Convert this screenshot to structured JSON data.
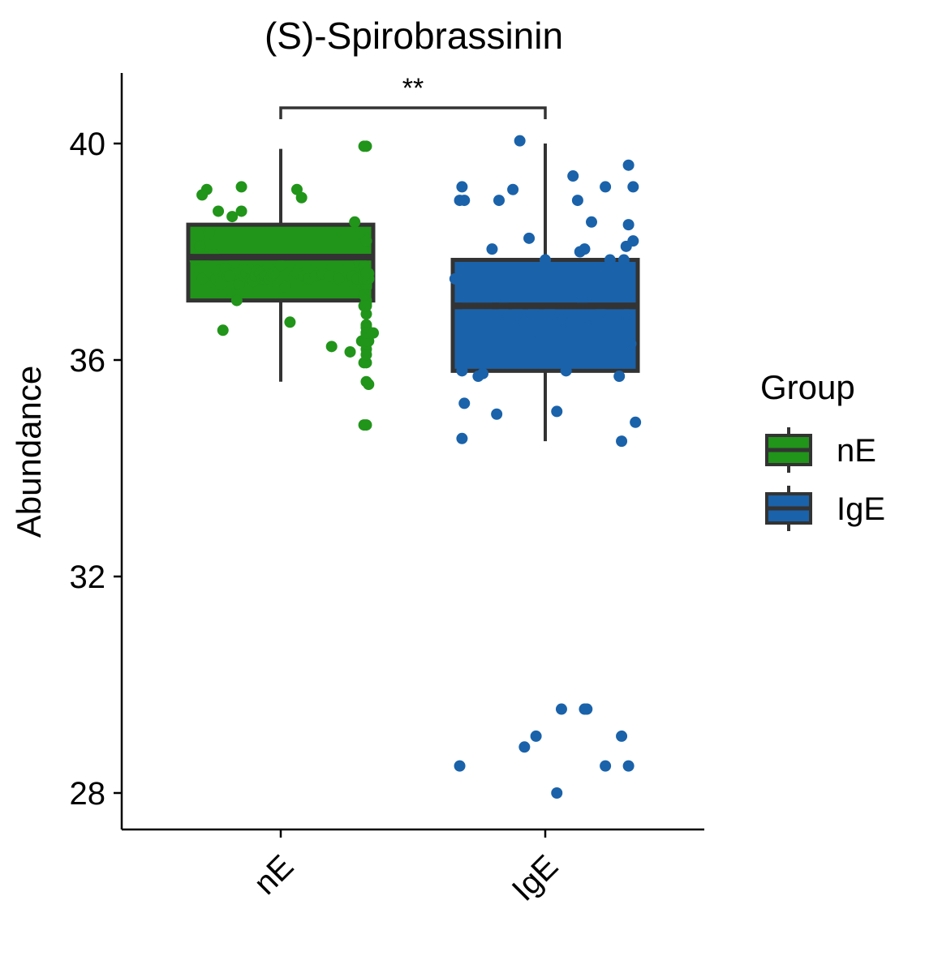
{
  "chart_data": {
    "type": "box",
    "title": "(S)-Spirobrassinin",
    "xlabel": "",
    "ylabel": "Abundance",
    "ylim": [
      27.3,
      41.3
    ],
    "yticks": [
      28,
      32,
      36,
      40
    ],
    "ytick_labels": [
      "28",
      "32",
      "36",
      "40"
    ],
    "categories": [
      "nE",
      "IgE"
    ],
    "legend": {
      "title": "Group",
      "position": "right",
      "entries": [
        "nE",
        "IgE"
      ]
    },
    "grid": false,
    "significance": {
      "label": "**",
      "between": [
        "nE",
        "IgE"
      ]
    },
    "colors": {
      "nE": "#21941a",
      "IgE": "#1a62aa",
      "box_outline": "#333333"
    },
    "groups": [
      {
        "name": "nE",
        "whisker_low": 35.6,
        "q1": 37.1,
        "median": 37.9,
        "q3": 38.5,
        "whisker_high": 39.9,
        "points": [
          [
            -0.37,
            37.85
          ],
          [
            -0.36,
            37.9
          ],
          [
            -0.35,
            38.1
          ],
          [
            -0.34,
            37.5
          ],
          [
            -0.33,
            37.9
          ],
          [
            -0.32,
            39.15
          ],
          [
            -0.31,
            38.35
          ],
          [
            -0.3,
            37.6
          ],
          [
            -0.29,
            37.95
          ],
          [
            -0.28,
            37.5
          ],
          [
            -0.27,
            37.65
          ],
          [
            -0.26,
            37.4
          ],
          [
            -0.25,
            36.55
          ],
          [
            -0.24,
            37.7
          ],
          [
            -0.23,
            37.55
          ],
          [
            -0.22,
            37.55
          ],
          [
            -0.21,
            38.65
          ],
          [
            -0.2,
            37.8
          ],
          [
            -0.19,
            37.1
          ],
          [
            -0.18,
            37.4
          ],
          [
            -0.17,
            39.2
          ],
          [
            -0.16,
            37.55
          ],
          [
            -0.15,
            37.6
          ],
          [
            -0.14,
            37.7
          ],
          [
            -0.13,
            37.5
          ],
          [
            -0.12,
            37.45
          ],
          [
            -0.11,
            37.55
          ],
          [
            -0.1,
            37.65
          ],
          [
            -0.09,
            37.6
          ],
          [
            -0.08,
            37.5
          ],
          [
            -0.07,
            37.55
          ],
          [
            -0.06,
            37.55
          ],
          [
            -0.05,
            37.5
          ],
          [
            -0.04,
            37.55
          ],
          [
            -0.03,
            37.6
          ],
          [
            0.0,
            37.75
          ],
          [
            0.02,
            37.35
          ],
          [
            0.04,
            36.7
          ],
          [
            0.07,
            37.6
          ],
          [
            0.1,
            37.55
          ],
          [
            0.12,
            37.5
          ],
          [
            0.15,
            37.55
          ],
          [
            0.18,
            37.6
          ],
          [
            0.21,
            37.55
          ],
          [
            0.22,
            36.25
          ],
          [
            0.25,
            37.5
          ],
          [
            0.3,
            36.15
          ],
          [
            0.31,
            37.55
          ],
          [
            0.32,
            38.55
          ],
          [
            0.33,
            37.5
          ],
          [
            0.34,
            37.8
          ],
          [
            0.35,
            36.35
          ],
          [
            0.36,
            37.75
          ],
          [
            0.37,
            36.65
          ],
          [
            0.38,
            37.5
          ],
          [
            -0.34,
            39.05
          ],
          [
            -0.27,
            38.75
          ],
          [
            -0.17,
            38.75
          ],
          [
            0.07,
            39.15
          ],
          [
            0.09,
            39.0
          ],
          [
            0.37,
            38.2
          ],
          [
            0.38,
            36.35
          ],
          [
            0.38,
            37.6
          ],
          [
            0.37,
            37.55
          ],
          [
            0.36,
            37.6
          ],
          [
            0.36,
            37.6
          ],
          [
            0.36,
            37.6
          ],
          [
            0.37,
            37.4
          ],
          [
            0.37,
            36.4
          ],
          [
            0.36,
            37.5
          ],
          [
            0.37,
            37.35
          ],
          [
            0.37,
            36.45
          ],
          [
            0.37,
            36.4
          ],
          [
            0.37,
            36.4
          ],
          [
            0.36,
            37.0
          ],
          [
            0.37,
            37.55
          ],
          [
            0.36,
            37.6
          ],
          [
            0.37,
            35.95
          ],
          [
            0.37,
            36.2
          ],
          [
            0.37,
            37.1
          ],
          [
            0.36,
            37.45
          ],
          [
            0.38,
            35.55
          ],
          [
            0.37,
            36.3
          ],
          [
            0.37,
            37.6
          ],
          [
            0.37,
            35.6
          ],
          [
            0.36,
            35.95
          ],
          [
            0.37,
            36.6
          ],
          [
            0.37,
            37.05
          ],
          [
            0.37,
            36.85
          ],
          [
            0.37,
            36.1
          ],
          [
            0.37,
            37.35
          ],
          [
            0.37,
            36.35
          ],
          [
            0.37,
            37.5
          ],
          [
            0.38,
            37.5
          ],
          [
            0.37,
            37.0
          ],
          [
            0.36,
            37.2
          ],
          [
            0.37,
            37.4
          ],
          [
            0.37,
            37.5
          ],
          [
            0.37,
            37.5
          ],
          [
            0.36,
            37.5
          ],
          [
            0.37,
            37.5
          ],
          [
            0.37,
            37.5
          ],
          [
            0.36,
            37.55
          ],
          [
            0.37,
            37.6
          ],
          [
            0.37,
            36.5
          ],
          [
            0.37,
            36.5
          ],
          [
            0.37,
            36.5
          ],
          [
            0.37,
            36.5
          ],
          [
            0.37,
            34.8
          ],
          [
            0.36,
            34.8
          ],
          [
            0.37,
            39.95
          ],
          [
            0.36,
            39.95
          ],
          [
            0.37,
            36.5
          ],
          [
            0.38,
            36.5
          ],
          [
            0.37,
            36.5
          ],
          [
            0.37,
            36.5
          ],
          [
            0.4,
            36.5
          ]
        ]
      },
      {
        "name": "IgE",
        "whisker_low": 34.5,
        "q1": 35.8,
        "median": 37.0,
        "q3": 37.85,
        "whisker_high": 40.0,
        "points": [
          [
            -0.39,
            37.5
          ],
          [
            -0.37,
            38.95
          ],
          [
            -0.36,
            35.8
          ],
          [
            -0.36,
            34.55
          ],
          [
            -0.36,
            39.2
          ],
          [
            -0.35,
            38.95
          ],
          [
            -0.35,
            35.2
          ],
          [
            -0.34,
            37.6
          ],
          [
            -0.34,
            37.0
          ],
          [
            -0.32,
            36.9
          ],
          [
            -0.3,
            37.1
          ],
          [
            -0.29,
            35.7
          ],
          [
            -0.28,
            37.0
          ],
          [
            -0.27,
            35.75
          ],
          [
            -0.25,
            37.0
          ],
          [
            -0.23,
            38.05
          ],
          [
            -0.21,
            35.0
          ],
          [
            -0.2,
            38.95
          ],
          [
            -0.18,
            37.0
          ],
          [
            -0.16,
            36.8
          ],
          [
            -0.14,
            39.15
          ],
          [
            -0.12,
            36.9
          ],
          [
            -0.11,
            40.05
          ],
          [
            -0.09,
            36.7
          ],
          [
            -0.07,
            38.25
          ],
          [
            -0.05,
            36.95
          ],
          [
            -0.03,
            36.5
          ],
          [
            0.0,
            37.85
          ],
          [
            0.02,
            36.9
          ],
          [
            0.05,
            35.05
          ],
          [
            0.07,
            36.75
          ],
          [
            0.09,
            35.8
          ],
          [
            0.11,
            36.7
          ],
          [
            0.12,
            39.4
          ],
          [
            0.14,
            38.95
          ],
          [
            0.15,
            38.0
          ],
          [
            0.16,
            37.1
          ],
          [
            0.17,
            38.05
          ],
          [
            0.18,
            36.6
          ],
          [
            0.2,
            38.55
          ],
          [
            0.21,
            36.8
          ],
          [
            0.24,
            36.9
          ],
          [
            0.26,
            39.2
          ],
          [
            0.28,
            37.85
          ],
          [
            0.32,
            35.7
          ],
          [
            0.33,
            34.5
          ],
          [
            0.34,
            37.85
          ],
          [
            0.35,
            36.8
          ],
          [
            0.35,
            36.85
          ],
          [
            0.35,
            38.1
          ],
          [
            0.36,
            39.6
          ],
          [
            0.36,
            38.5
          ],
          [
            0.37,
            36.3
          ],
          [
            0.38,
            39.2
          ],
          [
            0.38,
            38.2
          ],
          [
            0.39,
            34.85
          ],
          [
            -0.37,
            28.5
          ],
          [
            -0.09,
            28.85
          ],
          [
            -0.04,
            29.05
          ],
          [
            0.05,
            28.0
          ],
          [
            0.07,
            29.55
          ],
          [
            0.17,
            29.55
          ],
          [
            0.18,
            29.55
          ],
          [
            0.26,
            28.5
          ],
          [
            0.33,
            29.05
          ],
          [
            0.36,
            28.5
          ]
        ]
      }
    ]
  }
}
